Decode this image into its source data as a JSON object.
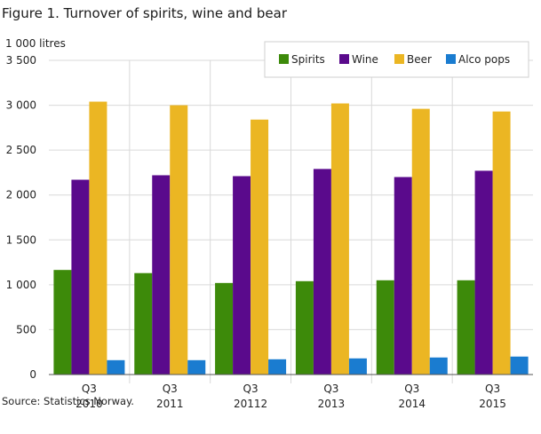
{
  "title": "Figure 1. Turnover of spirits, wine and bear",
  "source": "Source: Statistics Norway.",
  "chart_data": {
    "type": "bar",
    "unit_label": "1 000 litres",
    "categories": [
      [
        "Q3",
        "2010"
      ],
      [
        "Q3",
        "2011"
      ],
      [
        "Q3",
        "20112"
      ],
      [
        "Q3",
        "2013"
      ],
      [
        "Q3",
        "2014"
      ],
      [
        "Q3",
        "2015"
      ]
    ],
    "series": [
      {
        "name": "Spirits",
        "color": "#3d8a0a",
        "values": [
          1165,
          1130,
          1020,
          1040,
          1050,
          1050
        ]
      },
      {
        "name": "Wine",
        "color": "#5a0a8c",
        "values": [
          2170,
          2220,
          2210,
          2290,
          2200,
          2270
        ]
      },
      {
        "name": "Beer",
        "color": "#ebb623",
        "values": [
          3040,
          3000,
          2840,
          3020,
          2960,
          2930
        ]
      },
      {
        "name": "Alco pops",
        "color": "#1a7cd0",
        "values": [
          160,
          160,
          170,
          180,
          190,
          200
        ]
      }
    ],
    "ylim": [
      0,
      3500
    ],
    "yticks": [
      0,
      500,
      1000,
      1500,
      2000,
      2500,
      3000,
      3500
    ],
    "ytick_labels": [
      "0",
      "500",
      "1 000",
      "1 500",
      "2 000",
      "2 500",
      "3 000",
      "3 500"
    ],
    "grid": "horizontal",
    "legend_position": "top-right"
  }
}
